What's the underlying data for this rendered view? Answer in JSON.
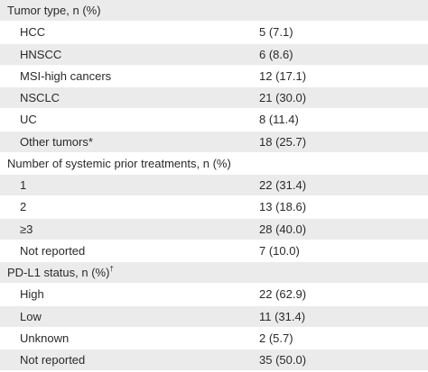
{
  "sections": [
    {
      "header": "Tumor type, n (%)",
      "header_sup": "",
      "rows": [
        {
          "label": "HCC",
          "value": "5 (7.1)"
        },
        {
          "label": "HNSCC",
          "value": "6 (8.6)"
        },
        {
          "label": "MSI-high cancers",
          "value": "12 (17.1)"
        },
        {
          "label": "NSCLC",
          "value": "21 (30.0)"
        },
        {
          "label": "UC",
          "value": "8 (11.4)"
        },
        {
          "label": "Other tumors*",
          "value": "18 (25.7)"
        }
      ]
    },
    {
      "header": "Number of systemic prior treatments, n (%)",
      "header_sup": "",
      "rows": [
        {
          "label": "1",
          "value": "22 (31.4)"
        },
        {
          "label": "2",
          "value": "13 (18.6)"
        },
        {
          "label": "≥3",
          "value": "28 (40.0)"
        },
        {
          "label": "Not reported",
          "value": "7 (10.0)"
        }
      ]
    },
    {
      "header": "PD-L1 status, n (%)",
      "header_sup": "†",
      "rows": [
        {
          "label": "High",
          "value": "22 (62.9)"
        },
        {
          "label": "Low",
          "value": "11 (31.4)"
        },
        {
          "label": "Unknown",
          "value": "2 (5.7)"
        },
        {
          "label": "Not reported",
          "value": "35 (50.0)"
        }
      ]
    }
  ]
}
